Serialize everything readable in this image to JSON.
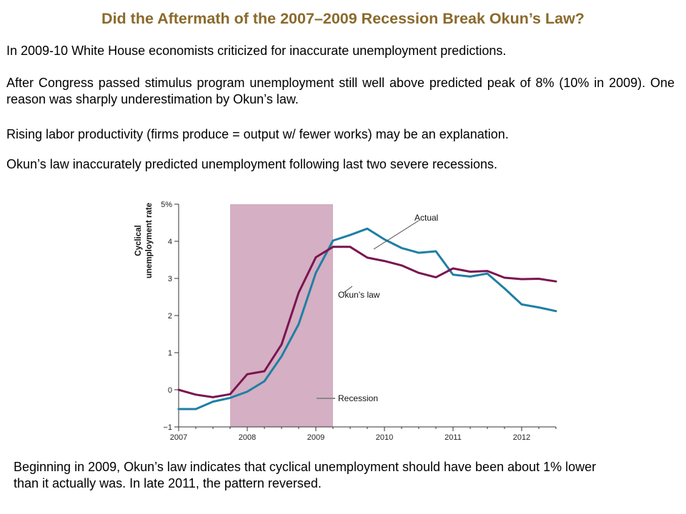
{
  "title": "Did the Aftermath of the 2007–2009 Recession Break Okun’s Law?",
  "paragraphs": [
    "In 2009-10 White House economists criticized for inaccurate unemployment predictions.",
    "After Congress passed stimulus program unemployment still well above predicted peak of 8% (10% in 2009). One reason was sharply underestimation by Okun’s law.",
    "Rising labor productivity (firms produce = output w/ fewer works) may be an explanation.",
    "Okun’s law inaccurately predicted unemployment following last two severe recessions."
  ],
  "bottom_text": "Beginning in 2009, Okun’s law indicates that cyclical unemployment should have been about 1% lower than it actually was. In late 2011, the pattern reversed.",
  "chart_data": {
    "type": "line",
    "ylabel_lines": [
      "Cyclical",
      "unemployment rate"
    ],
    "xlim": [
      2007,
      2012.5
    ],
    "ylim": [
      -1,
      5
    ],
    "x_ticks": [
      "2007",
      "2008",
      "2009",
      "2010",
      "2011",
      "2012"
    ],
    "y_ticks": [
      "5%",
      "4",
      "3",
      "2",
      "1",
      "0",
      "−1"
    ],
    "recession": {
      "label": "Recession",
      "start": 2007.75,
      "end": 2009.25,
      "color": "#d5afc3"
    },
    "series": [
      {
        "name": "Actual",
        "color": "#1f7fa5",
        "x": [
          2007.0,
          2007.25,
          2007.5,
          2007.75,
          2008.0,
          2008.25,
          2008.5,
          2008.75,
          2009.0,
          2009.25,
          2009.5,
          2009.75,
          2010.0,
          2010.25,
          2010.5,
          2010.75,
          2011.0,
          2011.25,
          2011.5,
          2011.75,
          2012.0,
          2012.25,
          2012.5
        ],
        "values": [
          -0.52,
          -0.52,
          -0.32,
          -0.22,
          -0.05,
          0.23,
          0.9,
          1.77,
          3.15,
          4.02,
          4.17,
          4.34,
          4.05,
          3.82,
          3.69,
          3.73,
          3.1,
          3.05,
          3.13,
          2.73,
          2.3,
          2.22,
          2.12
        ]
      },
      {
        "name": "Okun’s law",
        "color": "#7a1550",
        "x": [
          2007.0,
          2007.25,
          2007.5,
          2007.75,
          2008.0,
          2008.25,
          2008.5,
          2008.75,
          2009.0,
          2009.25,
          2009.5,
          2009.75,
          2010.0,
          2010.25,
          2010.5,
          2010.75,
          2011.0,
          2011.25,
          2011.5,
          2011.75,
          2012.0,
          2012.25,
          2012.5
        ],
        "values": [
          0.0,
          -0.13,
          -0.2,
          -0.12,
          0.42,
          0.5,
          1.22,
          2.62,
          3.57,
          3.85,
          3.85,
          3.56,
          3.47,
          3.35,
          3.15,
          3.03,
          3.27,
          3.18,
          3.2,
          3.02,
          2.98,
          2.99,
          2.92
        ]
      }
    ]
  }
}
